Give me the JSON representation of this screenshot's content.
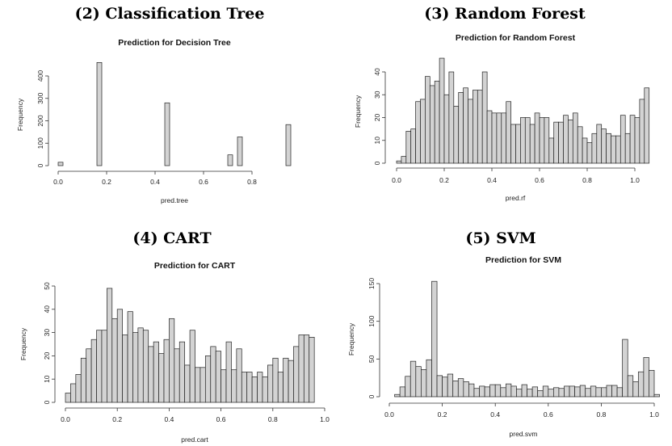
{
  "chart_data": [
    {
      "type": "bar",
      "panel_title": "(2) Classification Tree",
      "title": "Prediction for Decision Tree",
      "xlabel": "pred.tree",
      "ylabel": "Frequency",
      "xlim": [
        0,
        0.96
      ],
      "ylim": [
        0,
        400
      ],
      "xticks": [
        0.0,
        0.2,
        0.4,
        0.6,
        0.8
      ],
      "yticks": [
        0,
        100,
        200,
        300,
        400
      ],
      "bin_width": 0.02,
      "bins_start": 0.0,
      "values": [
        15,
        0,
        0,
        0,
        0,
        0,
        0,
        0,
        460,
        0,
        0,
        0,
        0,
        0,
        0,
        0,
        0,
        0,
        0,
        0,
        0,
        0,
        280,
        0,
        0,
        0,
        0,
        0,
        0,
        0,
        0,
        0,
        0,
        0,
        0,
        48,
        0,
        128,
        0,
        0,
        0,
        0,
        0,
        0,
        0,
        0,
        0,
        183
      ]
    },
    {
      "type": "bar",
      "panel_title": "(3) Random Forest",
      "title": "Prediction for Random Forest",
      "xlabel": "pred.rf",
      "ylabel": "Frequency",
      "xlim": [
        0,
        1.0
      ],
      "ylim": [
        0,
        40
      ],
      "xticks": [
        0.0,
        0.2,
        0.4,
        0.6,
        0.8,
        1.0
      ],
      "yticks": [
        0,
        10,
        20,
        30,
        40
      ],
      "bin_width": 0.02,
      "bins_start": 0.0,
      "values": [
        1,
        3,
        14,
        15,
        27,
        28,
        38,
        34,
        36,
        46,
        30,
        40,
        25,
        31,
        33,
        28,
        32,
        32,
        40,
        23,
        22,
        22,
        22,
        27,
        17,
        17,
        20,
        20,
        17,
        22,
        20,
        20,
        11,
        18,
        18,
        21,
        19,
        22,
        16,
        11,
        9,
        13,
        17,
        15,
        13,
        12,
        12,
        21,
        13,
        21,
        20,
        28,
        33
      ]
    },
    {
      "type": "bar",
      "panel_title": "(4) CART",
      "title": "Prediction for CART",
      "xlabel": "pred.cart",
      "ylabel": "Frequency",
      "xlim": [
        0,
        1.0
      ],
      "ylim": [
        0,
        50
      ],
      "xticks": [
        0.0,
        0.2,
        0.4,
        0.6,
        0.8,
        1.0
      ],
      "yticks": [
        0,
        10,
        20,
        30,
        40,
        50
      ],
      "bin_width": 0.02,
      "bins_start": 0.0,
      "values": [
        4,
        8,
        12,
        19,
        23,
        27,
        31,
        31,
        49,
        36,
        40,
        29,
        39,
        30,
        32,
        31,
        24,
        26,
        21,
        27,
        36,
        23,
        26,
        16,
        31,
        15,
        15,
        20,
        24,
        22,
        14,
        26,
        14,
        23,
        13,
        13,
        11,
        13,
        11,
        16,
        19,
        13,
        19,
        18,
        24,
        29,
        29,
        28
      ]
    },
    {
      "type": "bar",
      "panel_title": "(5) SVM",
      "title": "Prediction for SVM",
      "xlabel": "pred.svm",
      "ylabel": "Frequency",
      "xlim": [
        0,
        1.0
      ],
      "ylim": [
        0,
        150
      ],
      "xticks": [
        0.0,
        0.2,
        0.4,
        0.6,
        0.8,
        1.0
      ],
      "yticks": [
        0,
        50,
        100,
        150
      ],
      "bin_width": 0.02,
      "bins_start": 0.02,
      "values": [
        3,
        13,
        27,
        47,
        40,
        36,
        49,
        153,
        28,
        26,
        30,
        21,
        24,
        20,
        17,
        11,
        14,
        13,
        16,
        16,
        12,
        17,
        14,
        10,
        16,
        10,
        13,
        8,
        14,
        10,
        12,
        11,
        14,
        14,
        13,
        15,
        11,
        14,
        12,
        12,
        15,
        15,
        12,
        76,
        28,
        20,
        33,
        52,
        35,
        3
      ]
    }
  ]
}
